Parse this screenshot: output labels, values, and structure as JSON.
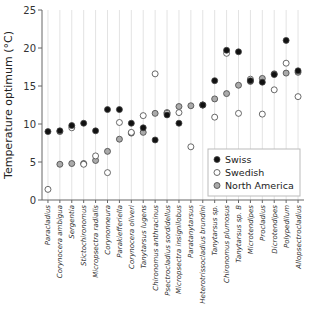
{
  "chart_data": {
    "type": "scatter",
    "y_label": "Temperature optimum (°C)",
    "categories": [
      "Paracladius",
      "Corynocera ambigua",
      "Sergentia",
      "Stictochironomus",
      "Micropsectra radialis",
      "Corynonneura",
      "Parakiefferiella",
      "Corynocera oliveri",
      "Tanytarsus lugens",
      "Chironomus anthracinus",
      "Psectrocladius sordidellus",
      "Micropsectra insignilobus",
      "Paratanytarsus",
      "Heterotrissocladius brundini",
      "Tanytarsus sp.",
      "Chironomus plumosus",
      "Tanytarsus sp. B",
      "Microtendipes",
      "Procladius",
      "Dicrotendipes",
      "Polypedilum",
      "Allopsectrocladius"
    ],
    "series": [
      {
        "name": "Swiss",
        "color": "#111111",
        "marker": "circle",
        "values": [
          9.0,
          9.1,
          9.8,
          10.1,
          9.1,
          11.9,
          11.9,
          10.1,
          9.5,
          7.9,
          11.2,
          10.1,
          null,
          12.5,
          15.7,
          19.7,
          19.5,
          15.7,
          15.5,
          16.5,
          21.0,
          17.0
        ]
      },
      {
        "name": "Swedish",
        "color": "#ffffff",
        "marker": "circle",
        "values": [
          1.4,
          9.0,
          9.5,
          4.7,
          5.8,
          3.6,
          10.2,
          8.9,
          11.1,
          16.6,
          11.4,
          11.5,
          7.0,
          12.5,
          10.9,
          19.3,
          11.4,
          15.9,
          11.3,
          14.5,
          18.0,
          13.6
        ]
      },
      {
        "name": "North America",
        "color": "#aaaaaa",
        "marker": "circle",
        "values": [
          null,
          4.7,
          4.8,
          4.8,
          5.2,
          6.4,
          8.0,
          8.8,
          8.9,
          11.4,
          11.5,
          12.3,
          12.4,
          12.5,
          13.3,
          14.0,
          15.1,
          15.6,
          16.0,
          16.6,
          16.7,
          16.8
        ]
      }
    ],
    "ylim": [
      0,
      25
    ],
    "yticks": [
      0,
      5,
      10,
      15,
      20,
      25
    ],
    "grid": true,
    "legend": "lower right"
  }
}
